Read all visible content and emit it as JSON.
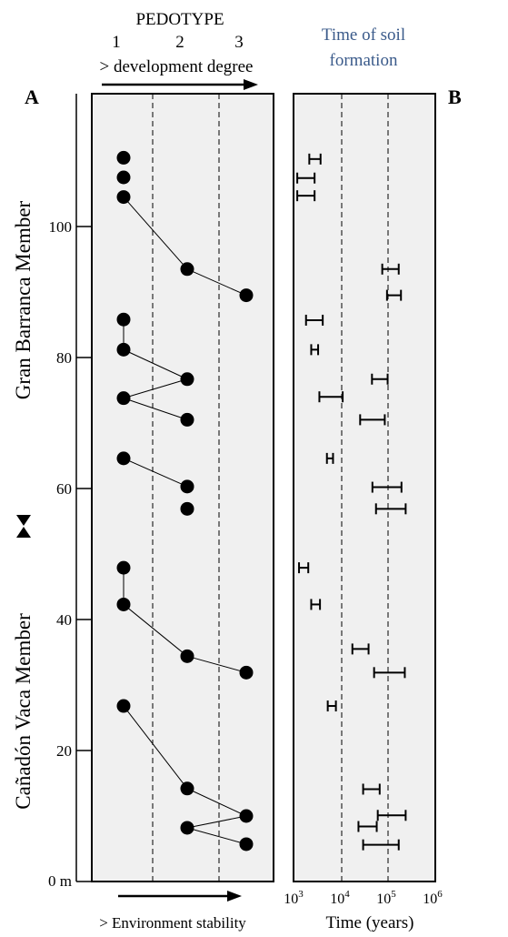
{
  "panel_a_label": "A",
  "panel_b_label": "B",
  "pedotype_title": "PEDOTYPE",
  "pedotype_ticks": [
    "1",
    "2",
    "3"
  ],
  "development_label": "> development degree",
  "stability_label": "> Environment stability",
  "time_title_line1": "Time of soil",
  "time_title_line2": "formation",
  "xlabel_b": "Time (years)",
  "upper_member": "Gran Barranca Member",
  "lower_member": "Cañadón Vaca Member",
  "zero_label": "0 m",
  "colors": {
    "text_blue": "#3a5a8a",
    "panel_fill": "#f0f0f0"
  },
  "chart_data": [
    {
      "type": "scatter",
      "panel": "A",
      "title": "PEDOTYPE",
      "x_categories": [
        "1",
        "2",
        "3"
      ],
      "ylabel": "m",
      "yticks": [
        0,
        20,
        40,
        60,
        80,
        100
      ],
      "ylim": [
        0,
        118
      ],
      "points": [
        {
          "x": 1,
          "y": 110.5
        },
        {
          "x": 1,
          "y": 107.5
        },
        {
          "x": 1,
          "y": 104.5
        },
        {
          "x": 2,
          "y": 93.5
        },
        {
          "x": 3,
          "y": 89.5
        },
        {
          "x": 1,
          "y": 85.8
        },
        {
          "x": 1,
          "y": 81.2
        },
        {
          "x": 2,
          "y": 76.7
        },
        {
          "x": 1,
          "y": 73.8
        },
        {
          "x": 2,
          "y": 70.5
        },
        {
          "x": 1,
          "y": 64.6
        },
        {
          "x": 2,
          "y": 60.3
        },
        {
          "x": 2,
          "y": 56.9
        },
        {
          "x": 1,
          "y": 47.9
        },
        {
          "x": 1,
          "y": 42.3
        },
        {
          "x": 2,
          "y": 34.4
        },
        {
          "x": 3,
          "y": 31.9
        },
        {
          "x": 1,
          "y": 26.8
        },
        {
          "x": 2,
          "y": 14.2
        },
        {
          "x": 3,
          "y": 10.0
        },
        {
          "x": 2,
          "y": 8.2
        },
        {
          "x": 3,
          "y": 5.7
        }
      ],
      "links": [
        [
          104.5,
          1,
          93.5,
          2
        ],
        [
          93.5,
          2,
          89.5,
          3
        ],
        [
          85.8,
          1,
          81.2,
          1
        ],
        [
          81.2,
          1,
          76.7,
          2
        ],
        [
          76.7,
          2,
          73.8,
          1
        ],
        [
          73.8,
          1,
          70.5,
          2
        ],
        [
          64.6,
          1,
          60.3,
          2
        ],
        [
          47.9,
          1,
          42.3,
          1
        ],
        [
          42.3,
          1,
          34.4,
          2
        ],
        [
          34.4,
          2,
          31.9,
          3
        ],
        [
          26.8,
          1,
          14.2,
          2
        ],
        [
          14.2,
          2,
          10.0,
          3
        ],
        [
          10.0,
          3,
          8.2,
          2
        ],
        [
          8.2,
          2,
          5.7,
          3
        ]
      ]
    },
    {
      "type": "range",
      "panel": "B",
      "title": "Time of soil formation",
      "xlabel": "Time (years)",
      "xscale": "log",
      "xlim": [
        1000,
        1000000
      ],
      "xticks": [
        {
          "value": 1000,
          "base": "10",
          "exp": "3"
        },
        {
          "value": 10000,
          "base": "10",
          "exp": "4"
        },
        {
          "value": 100000,
          "base": "10",
          "exp": "5"
        },
        {
          "value": 1000000,
          "base": "10",
          "exp": "6"
        }
      ],
      "ranges": [
        {
          "y": 110.3,
          "min": 2000,
          "max": 3500
        },
        {
          "y": 107.4,
          "min": 1100,
          "max": 2600
        },
        {
          "y": 104.7,
          "min": 1100,
          "max": 2600
        },
        {
          "y": 93.5,
          "min": 75000,
          "max": 170000
        },
        {
          "y": 89.5,
          "min": 95000,
          "max": 190000
        },
        {
          "y": 85.7,
          "min": 1700,
          "max": 3900
        },
        {
          "y": 81.2,
          "min": 2200,
          "max": 3100
        },
        {
          "y": 76.7,
          "min": 45000,
          "max": 98000
        },
        {
          "y": 74.0,
          "min": 3300,
          "max": 10500
        },
        {
          "y": 70.5,
          "min": 25000,
          "max": 85000
        },
        {
          "y": 64.6,
          "min": 4800,
          "max": 6500
        },
        {
          "y": 60.2,
          "min": 46000,
          "max": 195000
        },
        {
          "y": 56.9,
          "min": 55000,
          "max": 240000
        },
        {
          "y": 47.9,
          "min": 1200,
          "max": 1900
        },
        {
          "y": 42.3,
          "min": 2200,
          "max": 3400
        },
        {
          "y": 35.5,
          "min": 17000,
          "max": 38000
        },
        {
          "y": 31.9,
          "min": 50000,
          "max": 230000
        },
        {
          "y": 26.8,
          "min": 5000,
          "max": 7500
        },
        {
          "y": 14.1,
          "min": 29000,
          "max": 66000
        },
        {
          "y": 10.1,
          "min": 60000,
          "max": 240000
        },
        {
          "y": 8.4,
          "min": 23000,
          "max": 57000
        },
        {
          "y": 5.6,
          "min": 29000,
          "max": 170000
        }
      ]
    }
  ]
}
